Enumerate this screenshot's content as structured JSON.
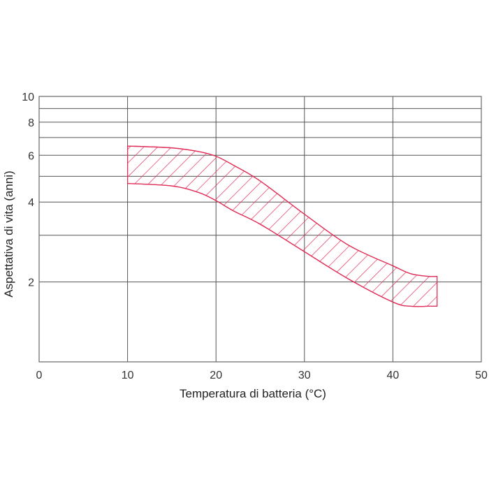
{
  "chart_data": {
    "type": "area",
    "xlabel": "Temperatura di batteria (°C)",
    "ylabel": "Aspettativa di vita (anni)",
    "xlim": [
      0,
      50
    ],
    "ylim": [
      1,
      10
    ],
    "y_scale": "log",
    "x_ticks": [
      "0",
      "10",
      "20",
      "30",
      "40",
      "50"
    ],
    "y_ticks": [
      "2",
      "4",
      "6",
      "8",
      "10"
    ],
    "y_ticks_values": [
      2,
      4,
      6,
      8,
      10
    ],
    "grid": true,
    "band_color": "#e0305a",
    "band_fill": "diagonal-hatch",
    "upper_bound": {
      "x": [
        10,
        15,
        18,
        20,
        22,
        25,
        30,
        35,
        40,
        42,
        44,
        45
      ],
      "y": [
        6.5,
        6.4,
        6.2,
        5.95,
        5.5,
        4.8,
        3.6,
        2.75,
        2.3,
        2.15,
        2.1,
        2.1
      ]
    },
    "lower_bound": {
      "x": [
        10,
        15,
        18,
        20,
        22,
        25,
        30,
        35,
        40,
        42,
        44,
        45
      ],
      "y": [
        4.7,
        4.6,
        4.35,
        4.05,
        3.7,
        3.3,
        2.6,
        2.05,
        1.68,
        1.62,
        1.62,
        1.62
      ]
    }
  }
}
